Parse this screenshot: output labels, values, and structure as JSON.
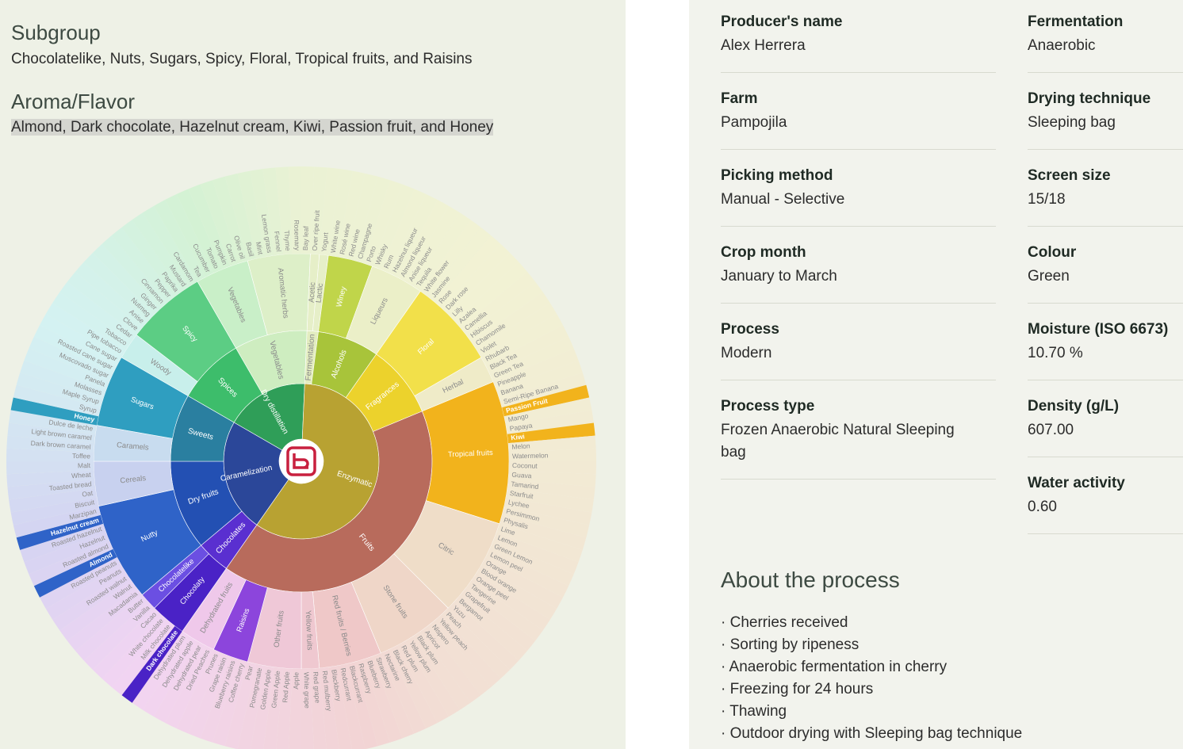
{
  "subgroup": {
    "title": "Subgroup",
    "text": "Chocolatelike, Nuts, Sugars, Spicy, Floral, Tropical fruits, and Raisins"
  },
  "aroma": {
    "title": "Aroma/Flavor",
    "text": "Almond, Dark chocolate, Hazelnut cream, Kiwi, Passion fruit, and Honey"
  },
  "wheel": {
    "nodes": [
      {
        "name": "Dry distillation",
        "color": "#2f9e58",
        "children": [
          {
            "name": "Spices",
            "color": "#3dbd6b",
            "children": [
              {
                "name": "Woody",
                "children": [
                  "Pipe tobacco",
                  "Tobacco",
                  "Cedar"
                ]
              },
              {
                "name": "Spicy",
                "color": "#5ccd84",
                "children": [
                  "Clove",
                  "Anise",
                  "Nutmeg",
                  "Ginger",
                  "Cinnamon",
                  "Pepper",
                  "Paprika",
                  "Mustard",
                  "Cardamom"
                ]
              }
            ]
          },
          {
            "name": "Vegetables",
            "children": [
              {
                "name": "Vegetables",
                "children": [
                  "Tea",
                  "Cucumber",
                  "Tomato",
                  "Pumpkin",
                  "Carrot",
                  "Olive oil"
                ]
              },
              {
                "name": "Aromatic herbs",
                "children": [
                  "Basil",
                  "Mint",
                  "Lemon grass",
                  "Fennel",
                  "Thyme",
                  "Rosemary",
                  "Bay leaf"
                ]
              }
            ]
          }
        ]
      },
      {
        "name": "Enzymatic",
        "color": "#b8a232",
        "children": [
          {
            "name": "Fermentation",
            "children": [
              {
                "name": "Acetic",
                "children": [
                  "Over ripe fruit"
                ]
              },
              {
                "name": "Lactic",
                "children": [
                  "Yogurt"
                ]
              }
            ]
          },
          {
            "name": "Alcohols",
            "color": "#a8c43a",
            "children": [
              {
                "name": "Winey",
                "color": "#c0d54a",
                "children": [
                  "White wine",
                  "Rosé wine",
                  "Red wine",
                  "Champagne",
                  "Porto"
                ]
              },
              {
                "name": "Liqueurs",
                "children": [
                  "Whisky",
                  "Rum",
                  "Hazelnut liqueur",
                  "Almond liqueur",
                  "Anise liqueur",
                  "Tequila"
                ]
              }
            ]
          },
          {
            "name": "Fragrances",
            "color": "#ecd22c",
            "children": [
              {
                "name": "Floral",
                "color": "#f2e04a",
                "children": [
                  "White flower",
                  "Jasmine",
                  "Rose",
                  "Dark rose",
                  "Lilly",
                  "Azalea",
                  "Camellia",
                  "Hibiscus",
                  "Chamomile",
                  "Violet"
                ]
              },
              {
                "name": "Herbal",
                "children": [
                  "Rhubarb",
                  "Black Tea",
                  "Green Tea"
                ]
              }
            ]
          },
          {
            "name": "Fruits",
            "color": "#b86b5c",
            "children": [
              {
                "name": "Tropical fruits",
                "color": "#f2b31c",
                "children": [
                  "Pineapple",
                  "Banana",
                  "Semi-Ripe Banana",
                  {
                    "name": "Passion Fruit",
                    "highlight": true
                  },
                  "Mango",
                  "Papaya",
                  {
                    "name": "Kiwi",
                    "highlight": true
                  },
                  "Melon",
                  "Watermelon",
                  "Coconut",
                  "Guava",
                  "Tamarind",
                  "Starfruit",
                  "Lychee",
                  "Persimmon",
                  "Physalis"
                ]
              },
              {
                "name": "Citric",
                "children": [
                  "Lime",
                  "Lemon",
                  "Green Lemon",
                  "Lemon peel",
                  "Orange",
                  "Blood orange",
                  "Orange peel",
                  "Tangerine",
                  "Grapefruit",
                  "Bergamot",
                  "Yuzu"
                ]
              },
              {
                "name": "Stone fruits",
                "children": [
                  "Peach",
                  "Yellow peach",
                  "Nispero",
                  "Apricot",
                  "Black plum",
                  "Yellow plum",
                  "Red plum",
                  "Black cherry",
                  "Nectarine"
                ]
              },
              {
                "name": "Red fruits / Berries",
                "children": [
                  "Strawberry",
                  "Blueberry",
                  "Raspberry",
                  "Blackcurrant",
                  "Redcurrant",
                  "Blackberry",
                  "Red mulberry"
                ]
              },
              {
                "name": "Yellow fruits",
                "children": [
                  "Red grape",
                  "White grape"
                ]
              },
              {
                "name": "Other fruits",
                "children": [
                  "Apple",
                  "Red Apple",
                  "Green Apple",
                  "Golden Apple",
                  "Pomegranate",
                  "Pear"
                ]
              },
              {
                "name": "Raisins",
                "color": "#8c45dc",
                "children": [
                  "Coffee cherry",
                  "Blueberry raisins",
                  "Grape raisin",
                  "Prunes"
                ]
              },
              {
                "name": "Dehydrated fruits",
                "children": [
                  "Dried Peaches",
                  "Dehydrated pear",
                  "Dehydrated apple",
                  "Dehydrated plum"
                ]
              }
            ]
          }
        ]
      },
      {
        "name": "Caramelization",
        "color": "#2b4799",
        "children": [
          {
            "name": "Chocolates",
            "color": "#5a2fd0",
            "children": [
              {
                "name": "Chocolaty",
                "color": "#4a22c6",
                "children": [
                  {
                    "name": "Dark chocolate",
                    "highlight": true
                  },
                  "Milk chocolate",
                  "White chocolate",
                  "Cacao"
                ]
              },
              {
                "name": "Chocolatelike",
                "color": "#6b4fe2",
                "children": [
                  "Vanilla",
                  "Butter"
                ]
              }
            ]
          },
          {
            "name": "Dry fruits",
            "color": "#2350b3",
            "children": [
              {
                "name": "Nutty",
                "color": "#2f63c8",
                "children": [
                  "Macadamia",
                  "Walnut",
                  "Roasted walnut",
                  "Peanuts",
                  "Roasted peanuts",
                  {
                    "name": "Almond",
                    "highlight": true
                  },
                  "Roasted almond",
                  "Hazelnut",
                  "Roasted hazelnut",
                  {
                    "name": "Hazelnut cream",
                    "highlight": true
                  },
                  "Marzipan"
                ]
              },
              {
                "name": "Cereals",
                "children": [
                  "Biscuit",
                  "Oat",
                  "Toasted bread",
                  "Wheat",
                  "Malt"
                ]
              }
            ]
          },
          {
            "name": "Sweets",
            "color": "#2a7fa0",
            "children": [
              {
                "name": "Caramels",
                "children": [
                  "Toffee",
                  "Dark brown caramel",
                  "Light brown caramel",
                  "Dulce de leche"
                ]
              },
              {
                "name": "Sugars",
                "color": "#2f9ec0",
                "children": [
                  {
                    "name": "Honey",
                    "highlight": true
                  },
                  "Syrup",
                  "Maple Syrup",
                  "Molasses",
                  "Panela",
                  "Muscovado sugar",
                  "Roasted cane sugar",
                  "Cane sugar"
                ]
              }
            ]
          }
        ]
      }
    ]
  },
  "details": {
    "left": [
      {
        "label": "Producer's name",
        "value": "Alex Herrera"
      },
      {
        "label": "Farm",
        "value": "Pampojila"
      },
      {
        "label": "Picking method",
        "value": "Manual - Selective"
      },
      {
        "label": "Crop month",
        "value": "January to March"
      },
      {
        "label": "Process",
        "value": "Modern"
      },
      {
        "label": "Process type",
        "value": "Frozen Anaerobic Natural Sleeping bag"
      }
    ],
    "right": [
      {
        "label": "Fermentation",
        "value": "Anaerobic"
      },
      {
        "label": "Drying technique",
        "value": "Sleeping bag"
      },
      {
        "label": "Screen size",
        "value": "15/18"
      },
      {
        "label": "Colour",
        "value": "Green"
      },
      {
        "label": "Moisture (ISO 6673)",
        "value": "10.70 %"
      },
      {
        "label": "Density (g/L)",
        "value": "607.00"
      },
      {
        "label": "Water activity",
        "value": "0.60"
      }
    ]
  },
  "process": {
    "title": "About the process",
    "steps": [
      "· Cherries received",
      "· Sorting by ripeness",
      "· Anaerobic fermentation in cherry",
      "· Freezing for 24 hours",
      "· Thawing",
      "· Outdoor drying with Sleeping bag technique"
    ]
  }
}
